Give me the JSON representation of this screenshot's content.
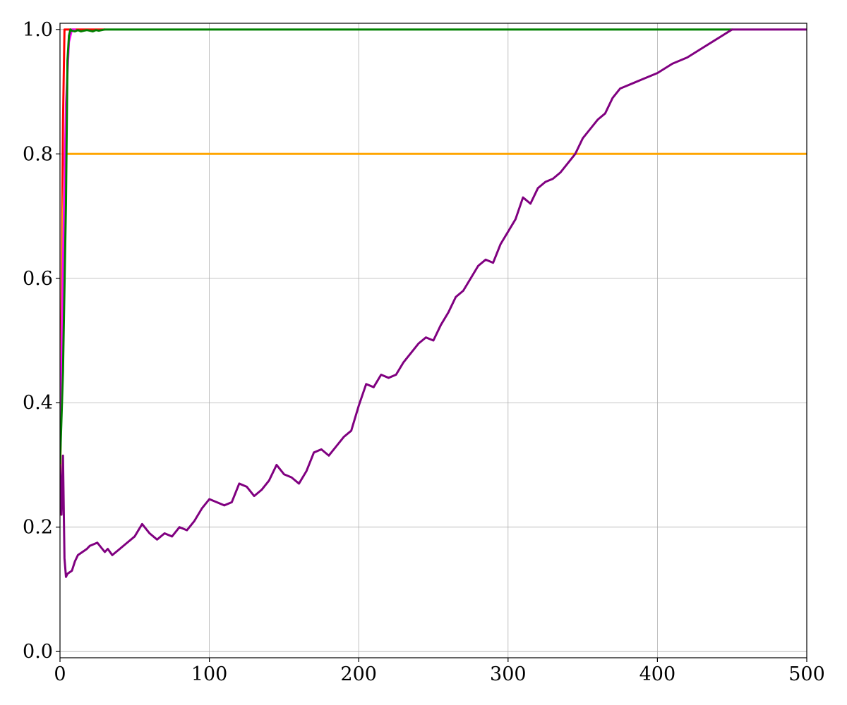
{
  "chart_data": {
    "type": "line",
    "title": "",
    "xlabel": "",
    "ylabel": "",
    "xlim": [
      0,
      500
    ],
    "ylim": [
      -0.01,
      1.01
    ],
    "grid": true,
    "legend": "none",
    "x_ticks": [
      0,
      100,
      200,
      300,
      400,
      500
    ],
    "x_tick_labels": [
      "0",
      "100",
      "200",
      "300",
      "400",
      "500"
    ],
    "y_ticks": [
      0.0,
      0.2,
      0.4,
      0.6,
      0.8,
      1.0
    ],
    "y_tick_labels": [
      "0.0",
      "0.2",
      "0.4",
      "0.6",
      "0.8",
      "1.0"
    ],
    "series": [
      {
        "color": "#ff0000",
        "x": [
          0,
          1,
          2,
          3,
          4,
          30
        ],
        "y": [
          0.3,
          0.55,
          0.85,
          1.0,
          1.0,
          1.0
        ]
      },
      {
        "color": "#ffa500",
        "x": [
          0,
          1,
          2,
          3,
          4,
          500
        ],
        "y": [
          0.22,
          0.5,
          0.7,
          0.78,
          0.8,
          0.8
        ]
      },
      {
        "color": "#ff00ff",
        "x": [
          0,
          2,
          4,
          6,
          8,
          10
        ],
        "y": [
          0.3,
          0.62,
          0.88,
          0.98,
          1.0,
          1.0
        ]
      },
      {
        "color": "#008000",
        "x": [
          0,
          2,
          4,
          5,
          6,
          7,
          8,
          10,
          12,
          14,
          16,
          18,
          20,
          22,
          24,
          26,
          28,
          30,
          40,
          450
        ],
        "y": [
          0.3,
          0.45,
          0.72,
          0.95,
          0.99,
          1.0,
          0.998,
          0.997,
          0.999,
          0.997,
          0.998,
          0.999,
          0.998,
          0.997,
          0.999,
          0.998,
          0.999,
          1.0,
          1.0,
          1.0
        ]
      },
      {
        "color": "#800080",
        "x": [
          0,
          1,
          2,
          3,
          4,
          5,
          8,
          10,
          12,
          15,
          18,
          20,
          25,
          30,
          32,
          35,
          40,
          45,
          50,
          55,
          60,
          65,
          70,
          75,
          80,
          85,
          90,
          95,
          100,
          105,
          110,
          115,
          120,
          125,
          130,
          135,
          140,
          145,
          150,
          155,
          160,
          165,
          170,
          175,
          180,
          185,
          190,
          195,
          200,
          205,
          210,
          215,
          220,
          225,
          230,
          235,
          240,
          245,
          250,
          255,
          260,
          265,
          270,
          275,
          280,
          285,
          290,
          295,
          300,
          305,
          310,
          315,
          320,
          325,
          330,
          335,
          340,
          345,
          350,
          355,
          360,
          365,
          370,
          375,
          380,
          385,
          390,
          395,
          400,
          410,
          420,
          430,
          440,
          450,
          460,
          470,
          480,
          490,
          500
        ],
        "y": [
          0.3,
          0.22,
          0.315,
          0.15,
          0.12,
          0.125,
          0.13,
          0.145,
          0.155,
          0.16,
          0.165,
          0.17,
          0.175,
          0.16,
          0.165,
          0.155,
          0.165,
          0.175,
          0.185,
          0.205,
          0.19,
          0.18,
          0.19,
          0.185,
          0.2,
          0.195,
          0.21,
          0.23,
          0.245,
          0.24,
          0.235,
          0.24,
          0.27,
          0.265,
          0.25,
          0.26,
          0.275,
          0.3,
          0.285,
          0.28,
          0.27,
          0.29,
          0.32,
          0.325,
          0.315,
          0.33,
          0.345,
          0.355,
          0.395,
          0.43,
          0.425,
          0.445,
          0.44,
          0.445,
          0.465,
          0.48,
          0.495,
          0.505,
          0.5,
          0.525,
          0.545,
          0.57,
          0.58,
          0.6,
          0.62,
          0.63,
          0.625,
          0.655,
          0.675,
          0.695,
          0.73,
          0.72,
          0.745,
          0.755,
          0.76,
          0.77,
          0.785,
          0.8,
          0.825,
          0.84,
          0.855,
          0.865,
          0.89,
          0.905,
          0.91,
          0.915,
          0.92,
          0.925,
          0.93,
          0.945,
          0.955,
          0.97,
          0.985,
          1.0,
          1.0,
          1.0,
          1.0,
          1.0,
          1.0
        ]
      }
    ]
  }
}
